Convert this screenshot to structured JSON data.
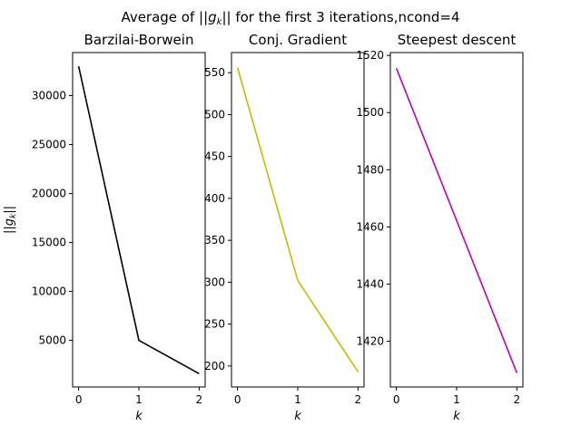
{
  "figure": {
    "suptitle_prefix": "Average of ||",
    "suptitle_var": "g",
    "suptitle_sub": "k",
    "suptitle_suffix": "|| for the first 3 iterations,ncond=4"
  },
  "chart_data": [
    {
      "type": "line",
      "title": "Barzilai-Borwein",
      "xlabel": "k",
      "ylabel": "||g_k||",
      "x": [
        0,
        1,
        2
      ],
      "y": [
        33000,
        5000,
        1600
      ],
      "xlim": [
        -0.1,
        2.1
      ],
      "ylim": [
        240,
        34400
      ],
      "xticks": [
        0,
        1,
        2
      ],
      "yticks": [
        5000,
        10000,
        15000,
        20000,
        25000,
        30000
      ],
      "color": "#000000",
      "grid": false
    },
    {
      "type": "line",
      "title": "Conj. Gradient",
      "xlabel": "k",
      "ylabel": "",
      "x": [
        0,
        1,
        2
      ],
      "y": [
        556,
        302,
        193
      ],
      "xlim": [
        -0.1,
        2.1
      ],
      "ylim": [
        175,
        574
      ],
      "xticks": [
        0,
        1,
        2
      ],
      "yticks": [
        200,
        250,
        300,
        350,
        400,
        450,
        500,
        550
      ],
      "color": "#bfbf00",
      "grid": false
    },
    {
      "type": "line",
      "title": "Steepest descent",
      "xlabel": "k",
      "ylabel": "",
      "x": [
        0,
        1,
        2
      ],
      "y": [
        1515.5,
        1462.2,
        1408.9
      ],
      "xlim": [
        -0.1,
        2.1
      ],
      "ylim": [
        1404,
        1521
      ],
      "xticks": [
        0,
        1,
        2
      ],
      "yticks": [
        1420,
        1440,
        1460,
        1480,
        1500,
        1520
      ],
      "color": "#bf00bf",
      "grid": false
    }
  ]
}
